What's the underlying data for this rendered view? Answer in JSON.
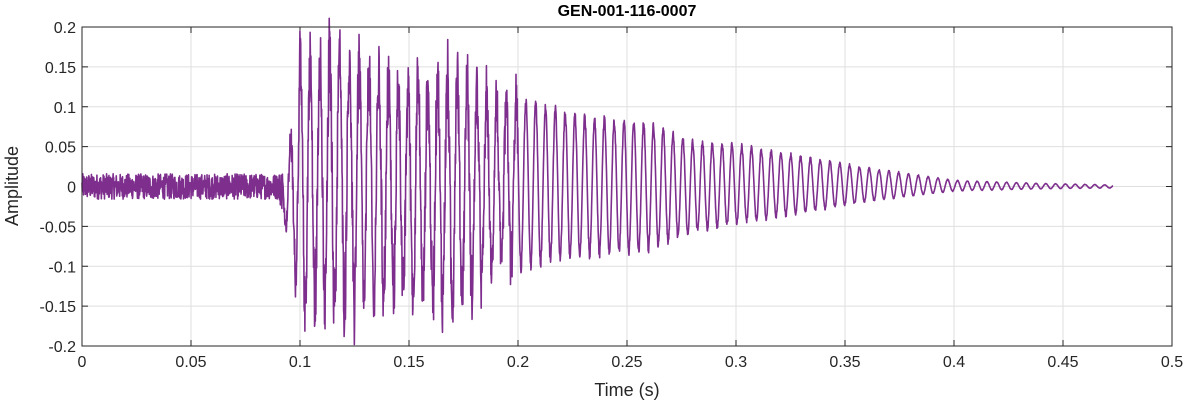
{
  "chart_data": {
    "type": "line",
    "title": "GEN-001-116-0007",
    "xlabel": "Time (s)",
    "ylabel": "Amplitude",
    "xlim": [
      0,
      0.5
    ],
    "ylim": [
      -0.2,
      0.2
    ],
    "grid": true,
    "x_ticks": [
      0,
      0.05,
      0.1,
      0.15,
      0.2,
      0.25,
      0.3,
      0.35,
      0.4,
      0.45,
      0.5
    ],
    "x_tick_labels": [
      "0",
      "0.05",
      "0.1",
      "0.15",
      "0.2",
      "0.25",
      "0.3",
      "0.35",
      "0.4",
      "0.45",
      "0.5"
    ],
    "y_ticks": [
      -0.2,
      -0.15,
      -0.1,
      -0.05,
      0,
      0.05,
      0.1,
      0.15,
      0.2
    ],
    "y_tick_labels": [
      "-0.2",
      "-0.15",
      "-0.1",
      "-0.05",
      "0",
      "0.05",
      "0.1",
      "0.15",
      "0.2"
    ],
    "series": [
      {
        "color": "#7e2f8e",
        "envelope": {
          "t": [
            0,
            0.09,
            0.095,
            0.1,
            0.11,
            0.12,
            0.13,
            0.14,
            0.15,
            0.16,
            0.17,
            0.18,
            0.19,
            0.2,
            0.22,
            0.24,
            0.26,
            0.28,
            0.3,
            0.33,
            0.36,
            0.4,
            0.44,
            0.473
          ],
          "upper": [
            0.02,
            0.02,
            0.05,
            0.17,
            0.185,
            0.19,
            0.17,
            0.15,
            0.145,
            0.15,
            0.16,
            0.14,
            0.12,
            0.12,
            0.1,
            0.09,
            0.085,
            0.06,
            0.055,
            0.04,
            0.025,
            0.008,
            0.004,
            0.002
          ],
          "lower": [
            -0.02,
            -0.02,
            -0.07,
            -0.16,
            -0.175,
            -0.17,
            -0.165,
            -0.15,
            -0.15,
            -0.155,
            -0.165,
            -0.14,
            -0.12,
            -0.11,
            -0.095,
            -0.09,
            -0.085,
            -0.06,
            -0.05,
            -0.035,
            -0.02,
            -0.006,
            -0.003,
            -0.002
          ]
        },
        "period_s": 0.0045,
        "t_end": 0.473
      }
    ]
  }
}
